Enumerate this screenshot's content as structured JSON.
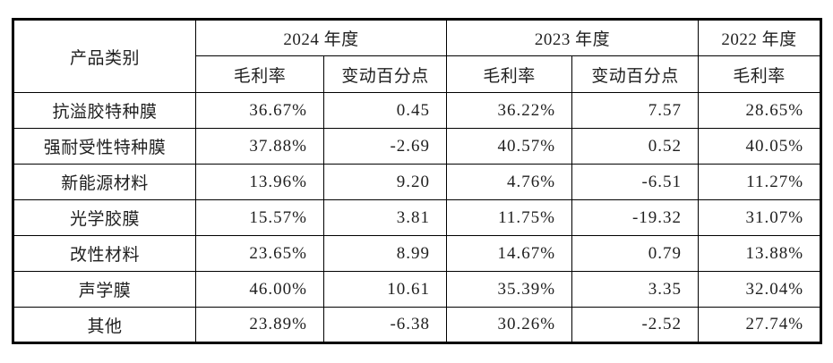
{
  "table": {
    "header": {
      "product_category": "产品类别",
      "y2024_label": "2024 年度",
      "y2023_label": "2023 年度",
      "y2022_label": "2022 年度",
      "margin_label": "毛利率",
      "change_label": "变动百分点"
    },
    "rows": [
      {
        "category": "抗溢胶特种膜",
        "cells": [
          "36.67%",
          "0.45",
          "36.22%",
          "7.57",
          "28.65%"
        ]
      },
      {
        "category": "强耐受性特种膜",
        "cells": [
          "37.88%",
          "-2.69",
          "40.57%",
          "0.52",
          "40.05%"
        ]
      },
      {
        "category": "新能源材料",
        "cells": [
          "13.96%",
          "9.20",
          "4.76%",
          "-6.51",
          "11.27%"
        ]
      },
      {
        "category": "光学胶膜",
        "cells": [
          "15.57%",
          "3.81",
          "11.75%",
          "-19.32",
          "31.07%"
        ]
      },
      {
        "category": "改性材料",
        "cells": [
          "23.65%",
          "8.99",
          "14.67%",
          "0.79",
          "13.88%"
        ]
      },
      {
        "category": "声学膜",
        "cells": [
          "46.00%",
          "10.61",
          "35.39%",
          "3.35",
          "32.04%"
        ]
      },
      {
        "category": "其他",
        "cells": [
          "23.89%",
          "-6.38",
          "30.26%",
          "-2.52",
          "27.74%"
        ]
      }
    ],
    "colors": {
      "border": "#000000",
      "text": "#1f1f1f",
      "background": "#ffffff"
    }
  }
}
